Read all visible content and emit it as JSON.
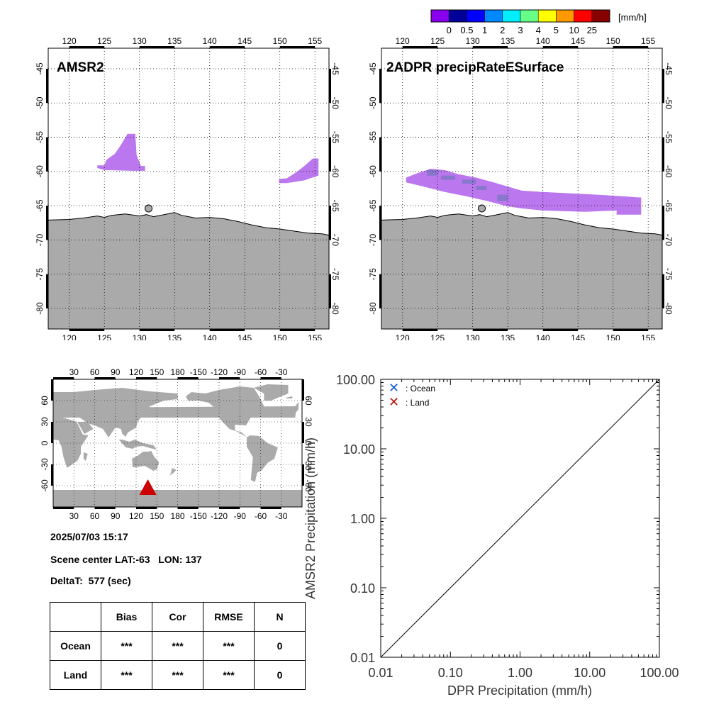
{
  "colorbar": {
    "unit": "[mm/h]",
    "colors": [
      "#8800ee",
      "#000099",
      "#0000ff",
      "#0088ff",
      "#00eeff",
      "#66ff88",
      "#ffff00",
      "#ff9900",
      "#ff0000",
      "#880000"
    ],
    "labels": [
      "0",
      "0.5",
      "1",
      "2",
      "3",
      "4",
      "5",
      "10",
      "25"
    ]
  },
  "map_left": {
    "title": "AMSR2",
    "lon_ticks": [
      "120",
      "125",
      "130",
      "135",
      "140",
      "145",
      "150",
      "155"
    ],
    "lat_ticks": [
      "-45",
      "-50",
      "-55",
      "-60",
      "-65",
      "-70",
      "-75",
      "-80"
    ],
    "land_color": "#aaaaaa",
    "precip_color": "#bb77ee"
  },
  "map_right": {
    "title": "2ADPR precipRateESurface",
    "lon_ticks": [
      "120",
      "125",
      "130",
      "135",
      "140",
      "145",
      "150",
      "155"
    ],
    "lat_ticks": [
      "-45",
      "-50",
      "-55",
      "-60",
      "-65",
      "-70",
      "-75",
      "-80"
    ],
    "land_color": "#aaaaaa",
    "precip_color": "#bb77ee",
    "precip_color_dark": "#8877cc"
  },
  "world_map": {
    "lon_ticks": [
      "30",
      "60",
      "90",
      "120",
      "150",
      "180",
      "-150",
      "-120",
      "-90",
      "-60",
      "-30"
    ],
    "lat_ticks": [
      "60",
      "30",
      "0",
      "-30",
      "-60"
    ],
    "marker_color": "#cc0000"
  },
  "info": {
    "datetime": "2025/07/03 15:17",
    "scene_center": "Scene center LAT:-63   LON: 137",
    "delta_t": "DeltaT:  577 (sec)"
  },
  "stats_table": {
    "headers": [
      "",
      "Bias",
      "Cor",
      "RMSE",
      "N"
    ],
    "rows": [
      [
        "Ocean",
        "***",
        "***",
        "***",
        "0"
      ],
      [
        "Land",
        "***",
        "***",
        "***",
        "0"
      ]
    ]
  },
  "chart_data": {
    "type": "scatter",
    "xlabel": "DPR Precipitation (mm/h)",
    "ylabel": "AMSR2 Precipitation (mm/h)",
    "xscale": "log",
    "yscale": "log",
    "xlim": [
      0.01,
      100
    ],
    "ylim": [
      0.01,
      100
    ],
    "x_tick_labels": [
      "0.01",
      "0.10",
      "1.00",
      "10.00",
      "100.00"
    ],
    "y_tick_labels": [
      "0.01",
      "0.10",
      "1.00",
      "10.00",
      "100.00"
    ],
    "reference_line": "1:1",
    "legend_position": "top-left",
    "series": [
      {
        "name": ": Ocean",
        "marker": "x",
        "color": "#1155dd",
        "points": []
      },
      {
        "name": ": Land",
        "marker": "x",
        "color": "#bb1111",
        "points": []
      }
    ]
  }
}
